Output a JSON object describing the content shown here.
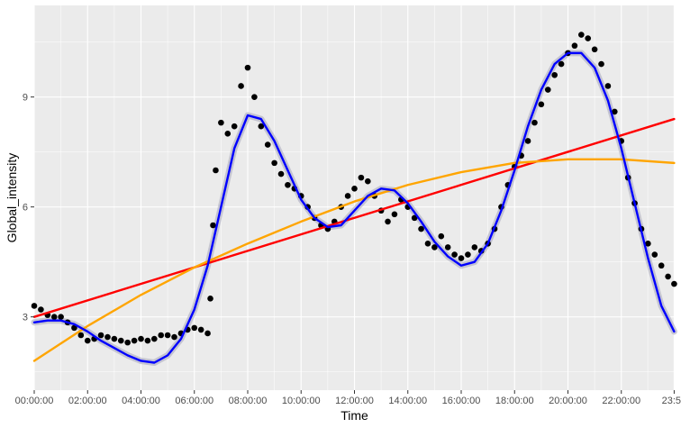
{
  "chart_data": {
    "type": "scatter",
    "xlabel": "Time",
    "ylabel": "Global_intensity",
    "x_ticks": [
      "00:00:00",
      "02:00:00",
      "04:00:00",
      "06:00:00",
      "08:00:00",
      "10:00:00",
      "12:00:00",
      "14:00:00",
      "16:00:00",
      "18:00:00",
      "20:00:00",
      "22:00:00",
      "23:59"
    ],
    "x_tick_hours": [
      0,
      2,
      4,
      6,
      8,
      10,
      12,
      14,
      16,
      18,
      20,
      22,
      23.98
    ],
    "y_ticks": [
      3,
      6,
      9
    ],
    "xlim_hours": [
      0,
      24
    ],
    "ylim": [
      1.0,
      11.5
    ],
    "grid": true,
    "background": "#ebebeb",
    "grid_color": "#ffffff",
    "series": [
      {
        "kind": "points",
        "color": "#000000",
        "points": [
          [
            0.0,
            3.3
          ],
          [
            0.25,
            3.2
          ],
          [
            0.5,
            3.05
          ],
          [
            0.75,
            3.0
          ],
          [
            1.0,
            3.0
          ],
          [
            1.25,
            2.85
          ],
          [
            1.5,
            2.7
          ],
          [
            1.75,
            2.5
          ],
          [
            2.0,
            2.35
          ],
          [
            2.25,
            2.4
          ],
          [
            2.5,
            2.5
          ],
          [
            2.75,
            2.45
          ],
          [
            3.0,
            2.4
          ],
          [
            3.25,
            2.35
          ],
          [
            3.5,
            2.3
          ],
          [
            3.75,
            2.35
          ],
          [
            4.0,
            2.4
          ],
          [
            4.25,
            2.35
          ],
          [
            4.5,
            2.4
          ],
          [
            4.75,
            2.5
          ],
          [
            5.0,
            2.5
          ],
          [
            5.25,
            2.45
          ],
          [
            5.5,
            2.55
          ],
          [
            5.75,
            2.65
          ],
          [
            6.0,
            2.7
          ],
          [
            6.25,
            2.65
          ],
          [
            6.5,
            2.55
          ],
          [
            6.6,
            3.5
          ],
          [
            6.7,
            5.5
          ],
          [
            6.8,
            7.0
          ],
          [
            7.0,
            8.3
          ],
          [
            7.25,
            8.0
          ],
          [
            7.5,
            8.2
          ],
          [
            7.75,
            9.3
          ],
          [
            8.0,
            9.8
          ],
          [
            8.25,
            9.0
          ],
          [
            8.5,
            8.2
          ],
          [
            8.75,
            7.7
          ],
          [
            9.0,
            7.2
          ],
          [
            9.25,
            6.9
          ],
          [
            9.5,
            6.6
          ],
          [
            9.75,
            6.5
          ],
          [
            10.0,
            6.3
          ],
          [
            10.25,
            6.0
          ],
          [
            10.5,
            5.7
          ],
          [
            10.75,
            5.5
          ],
          [
            11.0,
            5.4
          ],
          [
            11.25,
            5.6
          ],
          [
            11.5,
            6.0
          ],
          [
            11.75,
            6.3
          ],
          [
            12.0,
            6.5
          ],
          [
            12.25,
            6.8
          ],
          [
            12.5,
            6.7
          ],
          [
            12.75,
            6.3
          ],
          [
            13.0,
            5.9
          ],
          [
            13.25,
            5.6
          ],
          [
            13.5,
            5.8
          ],
          [
            13.75,
            6.2
          ],
          [
            14.0,
            6.0
          ],
          [
            14.25,
            5.7
          ],
          [
            14.5,
            5.4
          ],
          [
            14.75,
            5.0
          ],
          [
            15.0,
            4.9
          ],
          [
            15.25,
            5.2
          ],
          [
            15.5,
            4.9
          ],
          [
            15.75,
            4.7
          ],
          [
            16.0,
            4.6
          ],
          [
            16.25,
            4.7
          ],
          [
            16.5,
            4.9
          ],
          [
            16.75,
            4.8
          ],
          [
            17.0,
            5.0
          ],
          [
            17.25,
            5.4
          ],
          [
            17.5,
            6.0
          ],
          [
            17.75,
            6.6
          ],
          [
            18.0,
            7.1
          ],
          [
            18.25,
            7.4
          ],
          [
            18.5,
            7.8
          ],
          [
            18.75,
            8.3
          ],
          [
            19.0,
            8.8
          ],
          [
            19.25,
            9.2
          ],
          [
            19.5,
            9.6
          ],
          [
            19.75,
            9.9
          ],
          [
            20.0,
            10.2
          ],
          [
            20.25,
            10.4
          ],
          [
            20.5,
            10.7
          ],
          [
            20.75,
            10.6
          ],
          [
            21.0,
            10.3
          ],
          [
            21.25,
            9.9
          ],
          [
            21.5,
            9.3
          ],
          [
            21.75,
            8.6
          ],
          [
            22.0,
            7.8
          ],
          [
            22.25,
            6.8
          ],
          [
            22.5,
            6.1
          ],
          [
            22.75,
            5.4
          ],
          [
            23.0,
            5.0
          ],
          [
            23.25,
            4.7
          ],
          [
            23.5,
            4.4
          ],
          [
            23.75,
            4.1
          ],
          [
            23.98,
            3.9
          ]
        ]
      },
      {
        "kind": "line",
        "color": "#ff0000",
        "points": [
          [
            0.0,
            3.0
          ],
          [
            23.98,
            8.4
          ]
        ]
      },
      {
        "kind": "line",
        "color": "#ffa500",
        "points": [
          [
            0.0,
            1.8
          ],
          [
            2.0,
            2.75
          ],
          [
            4.0,
            3.6
          ],
          [
            6.0,
            4.35
          ],
          [
            8.0,
            5.0
          ],
          [
            10.0,
            5.6
          ],
          [
            12.0,
            6.15
          ],
          [
            14.0,
            6.6
          ],
          [
            16.0,
            6.95
          ],
          [
            18.0,
            7.2
          ],
          [
            20.0,
            7.3
          ],
          [
            22.0,
            7.3
          ],
          [
            23.98,
            7.2
          ]
        ]
      },
      {
        "kind": "line",
        "color": "#0000ff",
        "band_color": "#b3b3c6",
        "points": [
          [
            0.0,
            2.85
          ],
          [
            0.5,
            2.9
          ],
          [
            1.0,
            2.9
          ],
          [
            1.5,
            2.8
          ],
          [
            2.0,
            2.6
          ],
          [
            2.5,
            2.35
          ],
          [
            3.0,
            2.15
          ],
          [
            3.5,
            1.95
          ],
          [
            4.0,
            1.8
          ],
          [
            4.5,
            1.75
          ],
          [
            5.0,
            1.95
          ],
          [
            5.5,
            2.4
          ],
          [
            6.0,
            3.2
          ],
          [
            6.5,
            4.4
          ],
          [
            7.0,
            6.0
          ],
          [
            7.5,
            7.6
          ],
          [
            8.0,
            8.5
          ],
          [
            8.5,
            8.4
          ],
          [
            9.0,
            7.8
          ],
          [
            9.5,
            7.0
          ],
          [
            10.0,
            6.2
          ],
          [
            10.5,
            5.7
          ],
          [
            11.0,
            5.45
          ],
          [
            11.5,
            5.5
          ],
          [
            12.0,
            5.9
          ],
          [
            12.5,
            6.3
          ],
          [
            13.0,
            6.5
          ],
          [
            13.5,
            6.45
          ],
          [
            14.0,
            6.1
          ],
          [
            14.5,
            5.6
          ],
          [
            15.0,
            5.05
          ],
          [
            15.5,
            4.65
          ],
          [
            16.0,
            4.4
          ],
          [
            16.5,
            4.5
          ],
          [
            17.0,
            5.0
          ],
          [
            17.5,
            5.9
          ],
          [
            18.0,
            7.0
          ],
          [
            18.5,
            8.2
          ],
          [
            19.0,
            9.2
          ],
          [
            19.5,
            9.9
          ],
          [
            20.0,
            10.2
          ],
          [
            20.5,
            10.2
          ],
          [
            21.0,
            9.8
          ],
          [
            21.5,
            8.9
          ],
          [
            22.0,
            7.6
          ],
          [
            22.5,
            6.1
          ],
          [
            23.0,
            4.6
          ],
          [
            23.5,
            3.3
          ],
          [
            23.98,
            2.6
          ]
        ]
      }
    ]
  }
}
